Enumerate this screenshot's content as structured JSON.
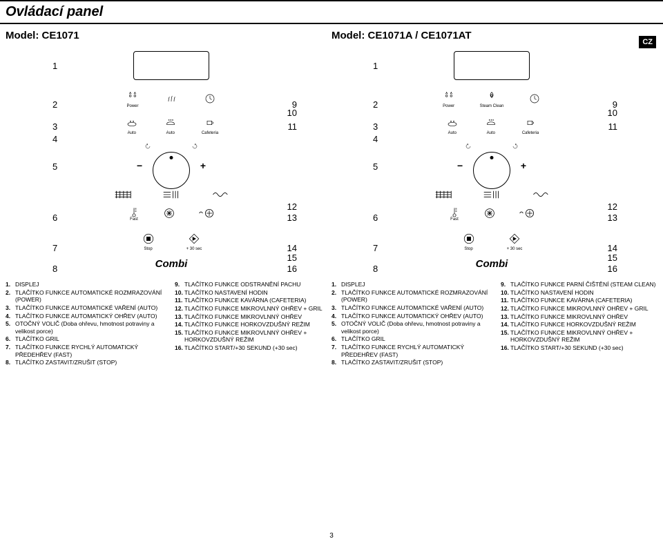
{
  "header": {
    "title": "Ovládací panel"
  },
  "cz": "CZ",
  "pageNum": "3",
  "modelA": {
    "name": "Model: CE1071"
  },
  "modelB": {
    "name": "Model: CE1071A / CE1071AT"
  },
  "combi": "Combi",
  "panelA": {
    "row1": [
      "Power",
      "",
      ""
    ],
    "row2": [
      "Auto",
      "Auto",
      "Cafeteria"
    ],
    "fast": "Fast",
    "stop": "Stop",
    "plus30": "+ 30 sec"
  },
  "panelB": {
    "row1": [
      "Power",
      "Steam Clean",
      ""
    ],
    "row2": [
      "Auto",
      "Auto",
      "Cafeteria"
    ],
    "fast": "Fast",
    "stop": "Stop",
    "plus30": "+ 30 sec"
  },
  "numsLeft": [
    "1",
    "2",
    "3",
    "4",
    "5",
    "6",
    "7",
    "8"
  ],
  "numsRight": [
    "9",
    "10",
    "11",
    "12",
    "13",
    "14",
    "15",
    "16"
  ],
  "listA1": [
    {
      "n": "1.",
      "t": "DISPLEJ"
    },
    {
      "n": "2.",
      "t": "TLAČÍTKO FUNKCE AUTOMATICKÉ ROZMRAZOVÁNÍ (POWER)"
    },
    {
      "n": "3.",
      "t": "TLAČÍTKO FUNKCE AUTOMATICKÉ VAŘENÍ (AUTO)"
    },
    {
      "n": "4.",
      "t": "TLAČÍTKO FUNKCE AUTOMATICKÝ OHŘEV (AUTO)"
    },
    {
      "n": "5.",
      "t": "OTOČNÝ VOLIČ (Doba ohřevu, hmotnost potraviny a velikost porce)"
    },
    {
      "n": "6.",
      "t": "TLAČÍTKO GRIL"
    },
    {
      "n": "7.",
      "t": "TLAČÍTKO FUNKCE RYCHLÝ AUTOMATICKÝ PŘEDEHŘEV (FAST)"
    },
    {
      "n": "8.",
      "t": "TLAČÍTKO ZASTAVIT/ZRUŠIT (STOP)"
    }
  ],
  "listA2": [
    {
      "n": "9.",
      "t": "TLAČÍTKO FUNKCE ODSTRANĚNÍ PACHU"
    },
    {
      "n": "10.",
      "t": "TLAČÍTKO NASTAVENÍ HODIN"
    },
    {
      "n": "11.",
      "t": "TLAČÍTKO FUNKCE KAVÁRNA (CAFETERIA)"
    },
    {
      "n": "12.",
      "t": "TLAČÍTKO FUNKCE MIKROVLNNÝ OHŘEV + GRIL"
    },
    {
      "n": "13.",
      "t": "TLAČÍTKO FUNKCE MIKROVLNNÝ OHŘEV"
    },
    {
      "n": "14.",
      "t": "TLAČÍTKO FUNKCE HORKOVZDUŠNÝ REŽIM"
    },
    {
      "n": "15.",
      "t": "TLAČÍTKO FUNKCE MIKROVLNNÝ OHŘEV + HORKOVZDUŠNÝ REŽIM"
    },
    {
      "n": "16.",
      "t": "TLAČÍTKO START/+30 SEKUND (+30 sec)"
    }
  ],
  "listB1": [
    {
      "n": "1.",
      "t": "DISPLEJ"
    },
    {
      "n": "2.",
      "t": "TLAČÍTKO FUNKCE AUTOMATICKÉ ROZMRAZOVÁNÍ (POWER)"
    },
    {
      "n": "3.",
      "t": "TLAČÍTKO FUNKCE AUTOMATICKÉ VAŘENÍ (AUTO)"
    },
    {
      "n": "4.",
      "t": "TLAČÍTKO FUNKCE AUTOMATICKÝ OHŘEV (AUTO)"
    },
    {
      "n": "5.",
      "t": "OTOČNÝ VOLIČ (Doba ohřevu, hmotnost potraviny a velikost porce)"
    },
    {
      "n": "6.",
      "t": "TLAČÍTKO GRIL"
    },
    {
      "n": "7.",
      "t": "TLAČÍTKO FUNKCE RYCHLÝ AUTOMATICKÝ PŘEDEHŘEV (FAST)"
    },
    {
      "n": "8.",
      "t": "TLAČÍTKO ZASTAVIT/ZRUŠIT (STOP)"
    }
  ],
  "listB2": [
    {
      "n": "9.",
      "t": "TLAČÍTKO FUNKCE PARNÍ ČIŠTĚNÍ (STEAM CLEAN)"
    },
    {
      "n": "10.",
      "t": "TLAČÍTKO NASTAVENÍ HODIN"
    },
    {
      "n": "11.",
      "t": "TLAČÍTKO FUNKCE KAVÁRNA (CAFETERIA)"
    },
    {
      "n": "12.",
      "t": "TLAČÍTKO FUNKCE MIKROVLNNÝ OHŘEV + GRIL"
    },
    {
      "n": "13.",
      "t": "TLAČÍTKO FUNKCE MIKROVLNNÝ OHŘEV"
    },
    {
      "n": "14.",
      "t": "TLAČÍTKO FUNKCE HORKOVZDUŠNÝ REŽIM"
    },
    {
      "n": "15.",
      "t": "TLAČÍTKO FUNKCE MIKROVLNNÝ OHŘEV + HORKOVZDUŠNÝ REŽIM"
    },
    {
      "n": "16.",
      "t": "TLAČÍTKO START/+30 SEKUND (+30 sec)"
    }
  ]
}
